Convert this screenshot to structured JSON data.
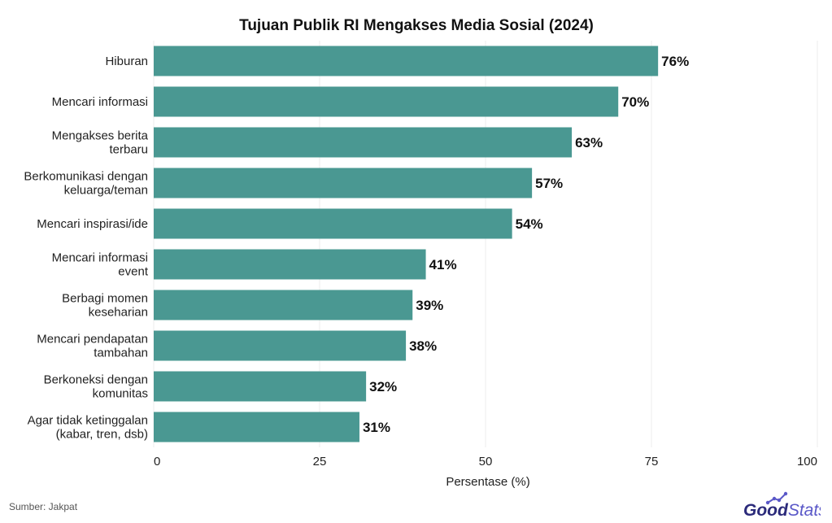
{
  "chart_data": {
    "type": "bar",
    "orientation": "horizontal",
    "title": "Tujuan Publik RI Mengakses Media Sosial (2024)",
    "categories": [
      [
        "Hiburan"
      ],
      [
        "Mencari informasi"
      ],
      [
        "Mengakses berita",
        "terbaru"
      ],
      [
        "Berkomunikasi dengan",
        "keluarga/teman"
      ],
      [
        "Mencari inspirasi/ide"
      ],
      [
        "Mencari informasi",
        "event"
      ],
      [
        "Berbagi momen",
        "keseharian"
      ],
      [
        "Mencari pendapatan",
        "tambahan"
      ],
      [
        "Berkoneksi dengan",
        "komunitas"
      ],
      [
        "Agar tidak ketinggalan",
        "(kabar, tren, dsb)"
      ]
    ],
    "values": [
      76,
      70,
      63,
      57,
      54,
      41,
      39,
      38,
      32,
      31
    ],
    "value_labels": [
      "76%",
      "70%",
      "63%",
      "57%",
      "54%",
      "41%",
      "39%",
      "38%",
      "32%",
      "31%"
    ],
    "xlabel": "Persentase (%)",
    "ylabel": "",
    "xlim": [
      0,
      100
    ],
    "xticks": [
      0,
      25,
      50,
      75,
      100
    ],
    "grid": true,
    "bar_color": "#4a9892"
  },
  "footer": {
    "source": "Sumber: Jakpat",
    "logo_text_good": "Good",
    "logo_text_stats": "Stats",
    "logo_color_good": "#2b2a7a",
    "logo_color_stats": "#5a58c8"
  }
}
